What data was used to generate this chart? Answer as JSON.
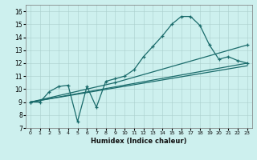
{
  "title": "",
  "xlabel": "Humidex (Indice chaleur)",
  "bg_color": "#cdf0ee",
  "line_color": "#1a6b6b",
  "xlim": [
    -0.5,
    23.5
  ],
  "ylim": [
    7,
    16.5
  ],
  "xticks": [
    0,
    1,
    2,
    3,
    4,
    5,
    6,
    7,
    8,
    9,
    10,
    11,
    12,
    13,
    14,
    15,
    16,
    17,
    18,
    19,
    20,
    21,
    22,
    23
  ],
  "yticks": [
    7,
    8,
    9,
    10,
    11,
    12,
    13,
    14,
    15,
    16
  ],
  "series1_x": [
    0,
    1,
    2,
    3,
    4,
    5,
    6,
    7,
    8,
    9,
    10,
    11,
    12,
    13,
    14,
    15,
    16,
    17,
    18,
    19,
    20,
    21,
    22,
    23
  ],
  "series1_y": [
    9.0,
    9.0,
    9.8,
    10.2,
    10.3,
    7.5,
    10.2,
    8.6,
    10.6,
    10.8,
    11.0,
    11.5,
    12.5,
    13.3,
    14.1,
    15.0,
    15.6,
    15.6,
    14.9,
    13.4,
    12.3,
    12.5,
    12.2,
    12.0
  ],
  "series2_x": [
    0,
    23
  ],
  "series2_y": [
    9.0,
    12.0
  ],
  "series3_x": [
    0,
    23
  ],
  "series3_y": [
    9.0,
    11.8
  ],
  "series4_x": [
    0,
    9,
    23
  ],
  "series4_y": [
    9.0,
    10.5,
    13.4
  ]
}
